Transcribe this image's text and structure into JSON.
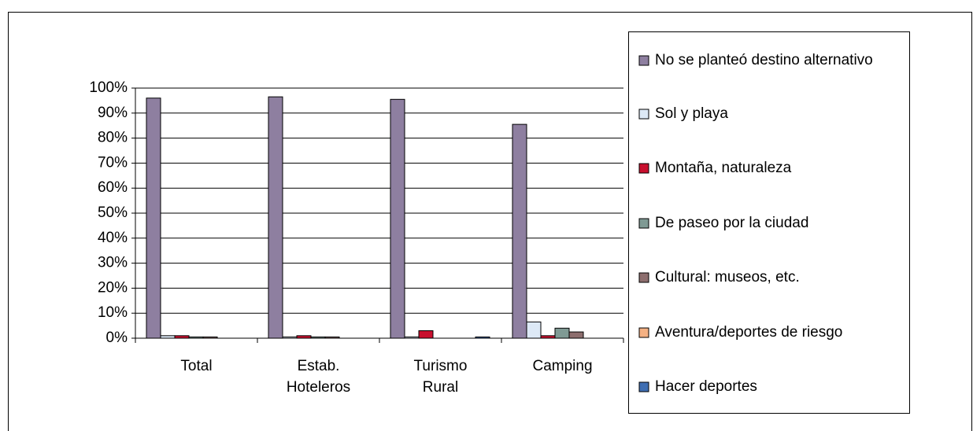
{
  "chart_data": {
    "type": "bar",
    "categories": [
      "Total",
      "Estab. Hoteleros",
      "Turismo Rural",
      "Camping"
    ],
    "series": [
      {
        "name": "No se planteó destino alternativo",
        "color": "#8e7fa0",
        "values": [
          96,
          96.5,
          95.5,
          85.5
        ]
      },
      {
        "name": "Sol y playa",
        "color": "#dde9f6",
        "values": [
          1,
          0.5,
          0.5,
          6.5
        ]
      },
      {
        "name": "Montaña, naturaleza",
        "color": "#c8102e",
        "values": [
          1,
          1,
          3,
          1
        ]
      },
      {
        "name": "De paseo por la ciudad",
        "color": "#7f9a94",
        "values": [
          0.5,
          0.5,
          0,
          4
        ]
      },
      {
        "name": "Cultural: museos, etc.",
        "color": "#8d6e6e",
        "values": [
          0.5,
          0.5,
          0,
          2.5
        ]
      },
      {
        "name": "Aventura/deportes de riesgo",
        "color": "#f4b183",
        "values": [
          0,
          0,
          0,
          0
        ]
      },
      {
        "name": "Hacer deportes",
        "color": "#3f6eb2",
        "values": [
          0,
          0,
          0.5,
          0
        ]
      }
    ],
    "ylim": [
      0,
      100
    ],
    "yticks": [
      {
        "value": 0,
        "label": "0%"
      },
      {
        "value": 10,
        "label": "10%"
      },
      {
        "value": 20,
        "label": "20%"
      },
      {
        "value": 30,
        "label": "30%"
      },
      {
        "value": 40,
        "label": "40%"
      },
      {
        "value": 50,
        "label": "50%"
      },
      {
        "value": 60,
        "label": "60%"
      },
      {
        "value": 70,
        "label": "70%"
      },
      {
        "value": 80,
        "label": "80%"
      },
      {
        "value": 90,
        "label": "90%"
      },
      {
        "value": 100,
        "label": "100%"
      }
    ],
    "grid": true,
    "legend": "right"
  }
}
